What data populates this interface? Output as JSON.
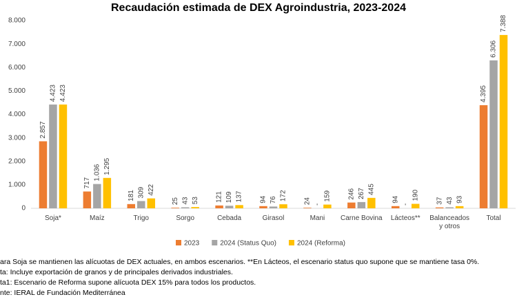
{
  "chart_data": {
    "type": "bar",
    "title": "Recaudación estimada de DEX Agroindustria, 2023-2024",
    "categories": [
      "Soja*",
      "Maíz",
      "Trigo",
      "Sorgo",
      "Cebada",
      "Girasol",
      "Mani",
      "Carne Bovina",
      "Lácteos**",
      "Balanceados y otros",
      "Total"
    ],
    "series": [
      {
        "name": "2023",
        "color": "#ed7d31",
        "values": [
          2857,
          717,
          181,
          25,
          121,
          94,
          24,
          246,
          94,
          37,
          4395
        ],
        "value_labels": [
          "2.857",
          "717",
          "181",
          "25",
          "121",
          "94",
          "24",
          "246",
          "94",
          "37",
          "4.395"
        ]
      },
      {
        "name": "2024 (Status Quo)",
        "color": "#a5a5a5",
        "values": [
          4423,
          1036,
          309,
          43,
          109,
          76,
          null,
          267,
          null,
          43,
          6306
        ],
        "value_labels": [
          "4.423",
          "1.036",
          "309",
          "43",
          "109",
          "76",
          "-",
          "267",
          "-",
          "43",
          "6.306"
        ]
      },
      {
        "name": "2024 (Reforma)",
        "color": "#ffc000",
        "values": [
          4423,
          1295,
          422,
          53,
          137,
          172,
          159,
          445,
          190,
          93,
          7388
        ],
        "value_labels": [
          "4.423",
          "1.295",
          "422",
          "53",
          "137",
          "172",
          "159",
          "445",
          "190",
          "93",
          "7.388"
        ]
      }
    ],
    "ylim": [
      0,
      8000
    ],
    "yticks": [
      0,
      {
        "value": 1000,
        "label": "1.000"
      },
      {
        "value": 2000,
        "label": "2.000"
      },
      {
        "value": 3000,
        "label": "3.000"
      },
      {
        "value": 4000,
        "label": "4.000"
      },
      {
        "value": 5000,
        "label": "5.000"
      },
      {
        "value": 6000,
        "label": "6.000"
      },
      {
        "value": 7000,
        "label": "7.000"
      },
      {
        "value": 8000,
        "label": "8.000"
      }
    ],
    "grid": false,
    "notes": [
      "ara Soja se mantienen las alícuotas de DEX actuales, en ambos escenarios. **En Lácteos, el escenario status quo supone que se mantiene tasa 0%.",
      "ta: Incluye exportación de granos y de principales derivados industriales.",
      "ta1: Escenario de Reforma supone alícuota DEX 15% para todos los productos.",
      "nte: IERAL de Fundación Mediterránea"
    ]
  }
}
